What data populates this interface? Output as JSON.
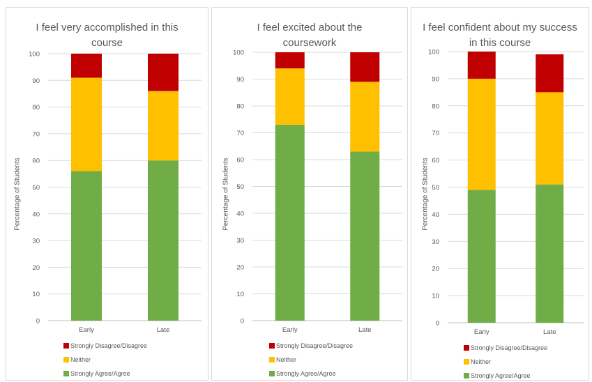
{
  "chart_data": [
    {
      "type": "bar",
      "stacked": true,
      "title": [
        "I feel very accomplished in this",
        "course"
      ],
      "ylabel": "Percentage of Students",
      "xlabel": "",
      "categories": [
        "Early",
        "Late"
      ],
      "ylim": [
        0,
        100
      ],
      "yticks": [
        0,
        10,
        20,
        30,
        40,
        50,
        60,
        70,
        80,
        90,
        100
      ],
      "grid": true,
      "legend_position": "bottom",
      "series": [
        {
          "name": "Strongly Agree/Agree",
          "values": [
            56,
            60
          ],
          "color": "#70ad47"
        },
        {
          "name": "Neither",
          "values": [
            35,
            26
          ],
          "color": "#ffc000"
        },
        {
          "name": "Strongly Disagree/Disagree",
          "values": [
            9,
            14
          ],
          "color": "#c00000"
        }
      ]
    },
    {
      "type": "bar",
      "stacked": true,
      "title": [
        "I feel excited about the",
        "coursework"
      ],
      "ylabel": "Percentage of Students",
      "xlabel": "",
      "categories": [
        "Early",
        "Late"
      ],
      "ylim": [
        0,
        100
      ],
      "yticks": [
        0,
        10,
        20,
        30,
        40,
        50,
        60,
        70,
        80,
        90,
        100
      ],
      "grid": true,
      "legend_position": "bottom",
      "series": [
        {
          "name": "Strongly Agree/Agree",
          "values": [
            73,
            63
          ],
          "color": "#70ad47"
        },
        {
          "name": "Neither",
          "values": [
            21,
            26
          ],
          "color": "#ffc000"
        },
        {
          "name": "Strongly Disagree/Disagree",
          "values": [
            6,
            11
          ],
          "color": "#c00000"
        }
      ]
    },
    {
      "type": "bar",
      "stacked": true,
      "title": [
        "I feel confident about my success",
        "in this course"
      ],
      "ylabel": "Percentage of Students",
      "xlabel": "",
      "categories": [
        "Early",
        "Late"
      ],
      "ylim": [
        0,
        100
      ],
      "yticks": [
        0,
        10,
        20,
        30,
        40,
        50,
        60,
        70,
        80,
        90,
        100
      ],
      "grid": true,
      "legend_position": "bottom",
      "series": [
        {
          "name": "Strongly Agree/Agree",
          "values": [
            49,
            51
          ],
          "color": "#70ad47"
        },
        {
          "name": "Neither",
          "values": [
            41,
            34
          ],
          "color": "#ffc000"
        },
        {
          "name": "Strongly Disagree/Disagree",
          "values": [
            10,
            14
          ],
          "color": "#c00000"
        }
      ]
    }
  ]
}
